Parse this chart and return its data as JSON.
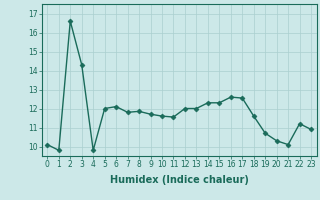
{
  "x": [
    0,
    1,
    2,
    3,
    4,
    5,
    6,
    7,
    8,
    9,
    10,
    11,
    12,
    13,
    14,
    15,
    16,
    17,
    18,
    19,
    20,
    21,
    22,
    23
  ],
  "y": [
    10.1,
    9.8,
    16.6,
    14.3,
    9.8,
    12.0,
    12.1,
    11.8,
    11.85,
    11.7,
    11.6,
    11.55,
    12.0,
    12.0,
    12.3,
    12.3,
    12.6,
    12.55,
    11.6,
    10.7,
    10.3,
    10.1,
    11.2,
    10.9
  ],
  "line_color": "#1a6b5a",
  "marker": "D",
  "markersize": 2.5,
  "linewidth": 1.0,
  "bg_color": "#cce8e8",
  "grid_color": "#aacfcf",
  "xlabel": "Humidex (Indice chaleur)",
  "ylim": [
    9.5,
    17.5
  ],
  "xlim": [
    -0.5,
    23.5
  ],
  "yticks": [
    10,
    11,
    12,
    13,
    14,
    15,
    16,
    17
  ],
  "xtick_labels": [
    "0",
    "1",
    "2",
    "3",
    "4",
    "5",
    "6",
    "7",
    "8",
    "9",
    "10",
    "11",
    "12",
    "13",
    "14",
    "15",
    "16",
    "17",
    "18",
    "19",
    "20",
    "21",
    "22",
    "23"
  ],
  "tick_fontsize": 5.5,
  "label_fontsize": 7
}
